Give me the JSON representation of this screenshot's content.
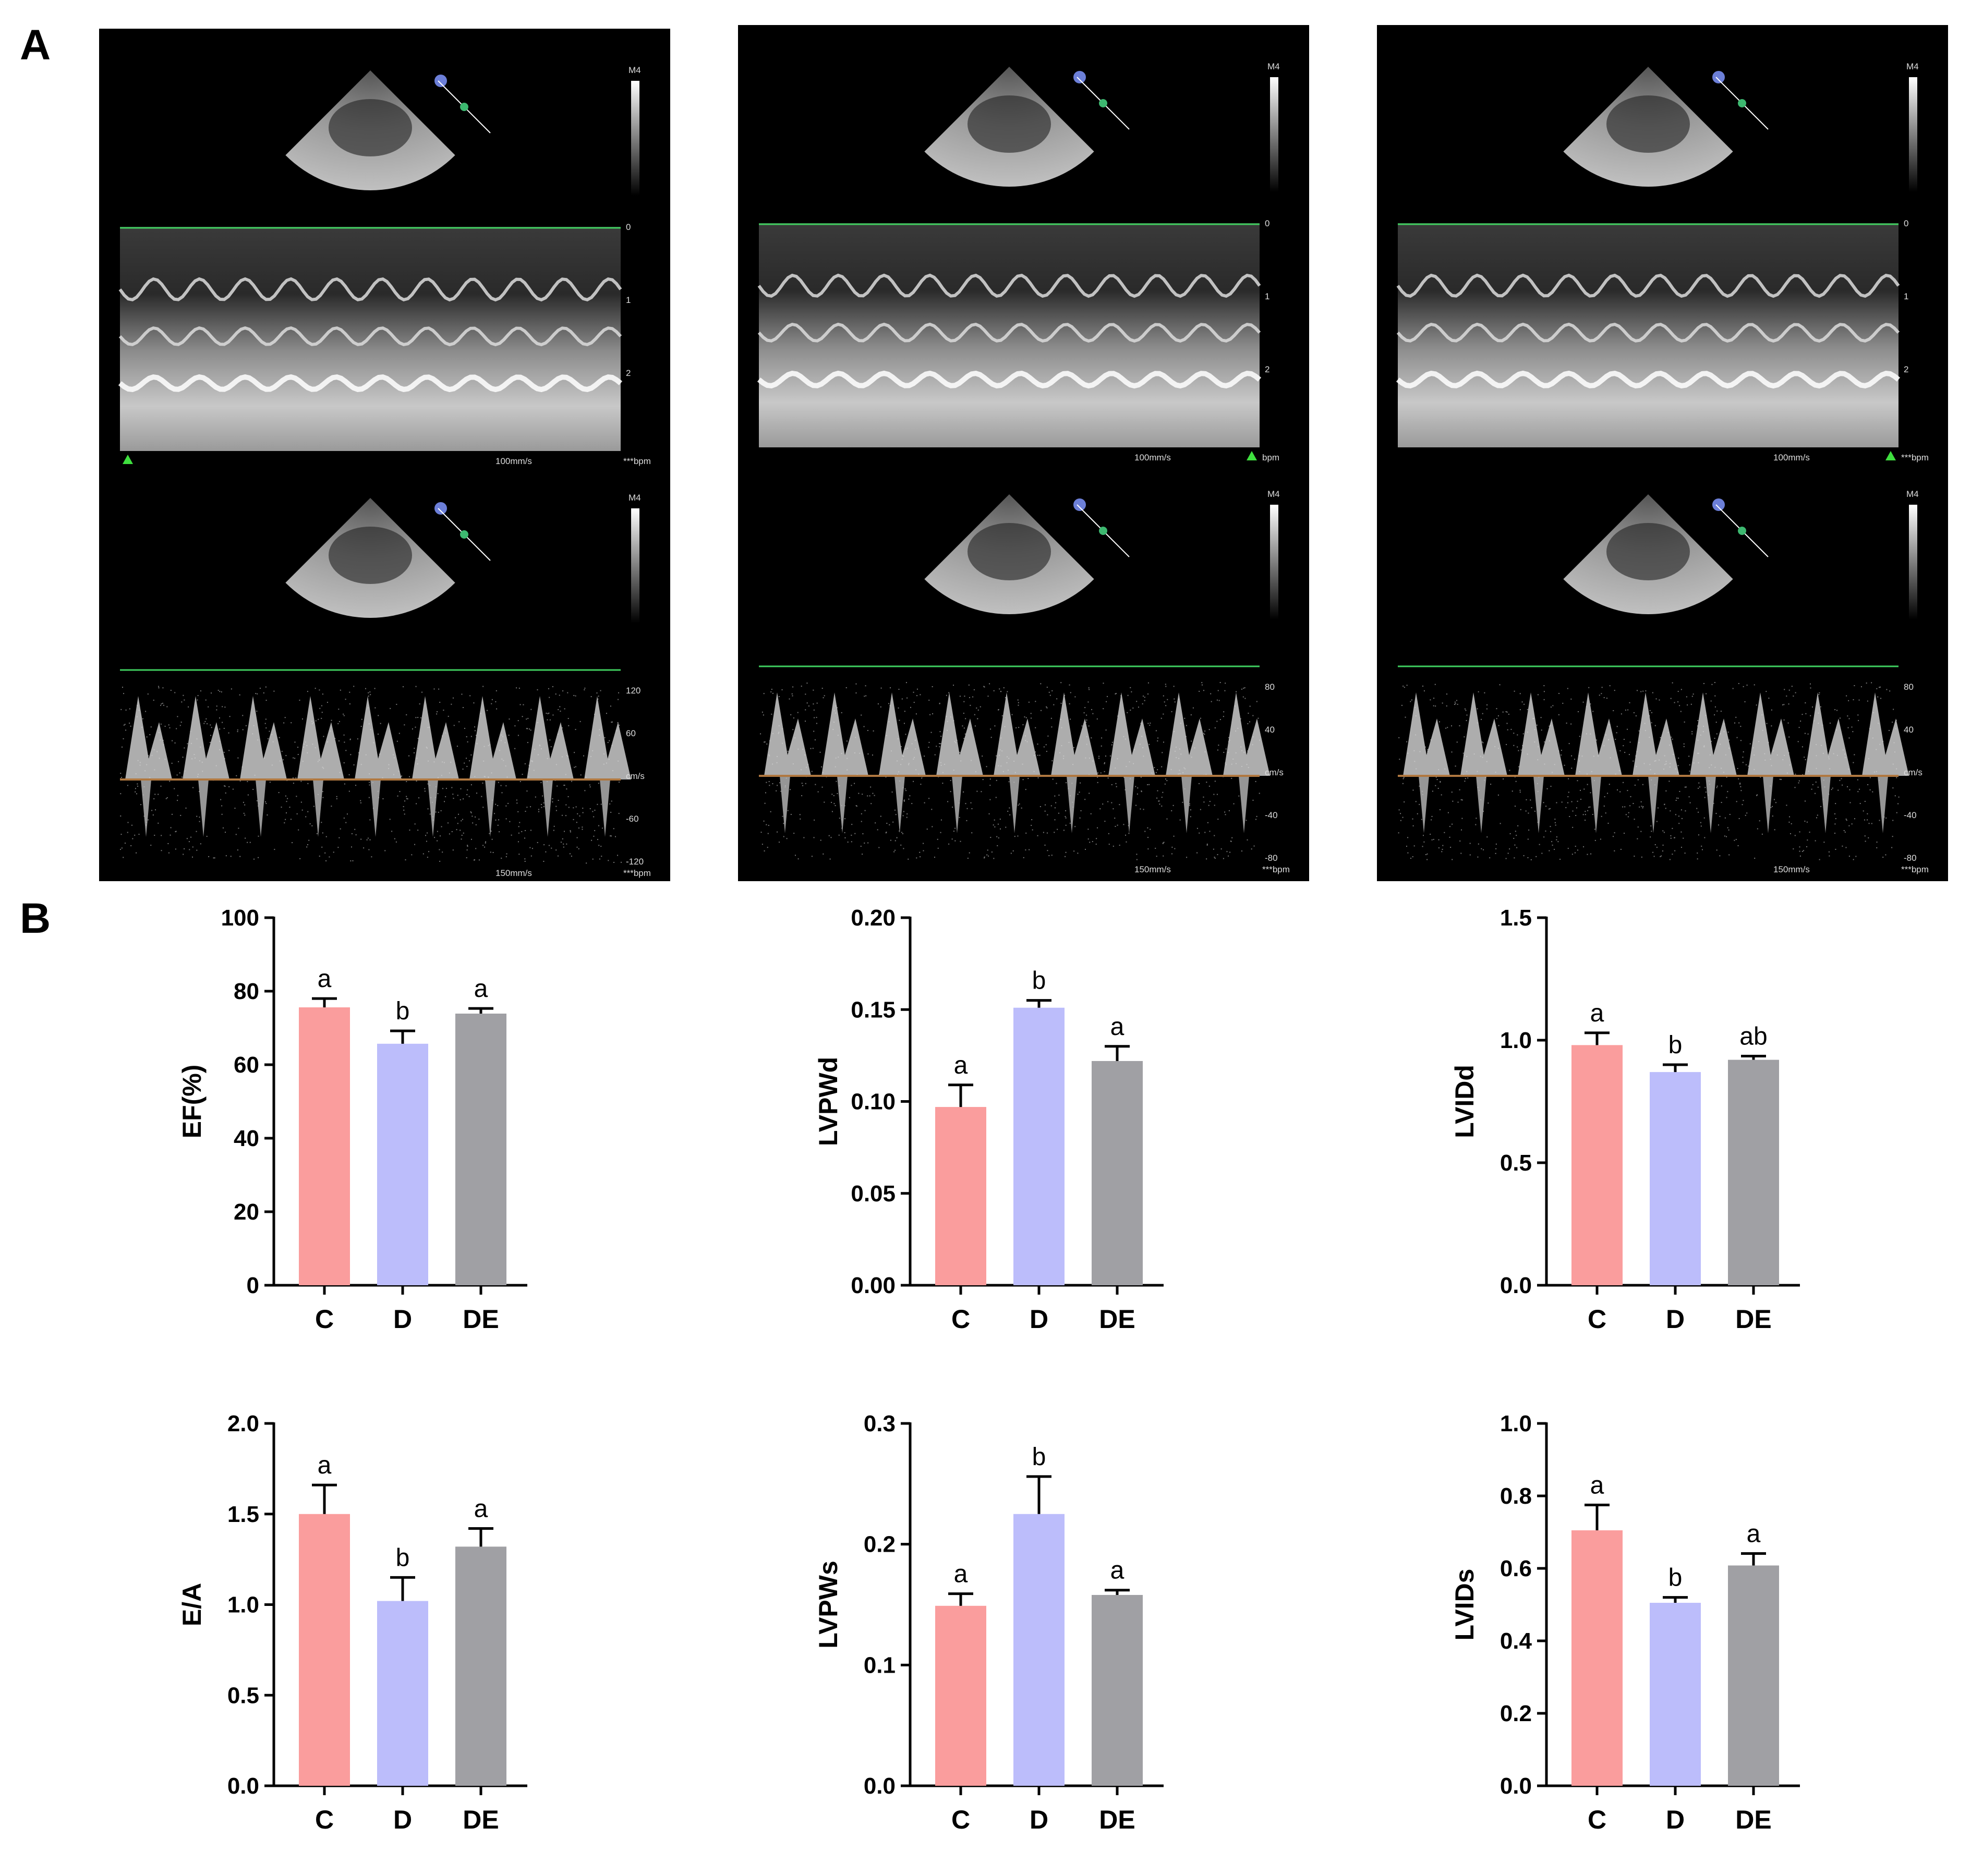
{
  "panels": {
    "a_label": "A",
    "b_label": "B"
  },
  "echo_panels": [
    {
      "mmode": {
        "depth_ticks": [
          "0",
          "1",
          "2"
        ],
        "speed": "100mm/s",
        "hr": "***bpm",
        "marker": "left"
      },
      "doppler": {
        "vel_ticks": [
          "120",
          "60",
          "cm/s",
          "-60",
          "-120"
        ],
        "speed": "150mm/s",
        "hr": "***bpm"
      },
      "probe_label": "M4"
    },
    {
      "mmode": {
        "depth_ticks": [
          "0",
          "1",
          "2"
        ],
        "speed": "100mm/s",
        "hr": "bpm",
        "marker": "right"
      },
      "doppler": {
        "vel_ticks": [
          "80",
          "40",
          "cm/s",
          "-40",
          "-80"
        ],
        "speed": "150mm/s",
        "hr": "***bpm"
      },
      "probe_label": "M4"
    },
    {
      "mmode": {
        "depth_ticks": [
          "0",
          "1",
          "2"
        ],
        "speed": "100mm/s",
        "hr": "***bpm",
        "marker": "right"
      },
      "doppler": {
        "vel_ticks": [
          "80",
          "40",
          "cm/s",
          "-40",
          "-80"
        ],
        "speed": "150mm/s",
        "hr": "***bpm"
      },
      "probe_label": "M4"
    }
  ],
  "colors": {
    "C": "#fa9d9d",
    "D": "#bcbdfb",
    "DE": "#a0a0a4"
  },
  "chart_data": [
    {
      "type": "bar",
      "ylabel": "EF(%)",
      "categories": [
        "C",
        "D",
        "DE"
      ],
      "values": [
        75.6,
        65.7,
        73.9
      ],
      "errors": [
        2.4,
        3.5,
        1.4
      ],
      "significance": [
        "a",
        "b",
        "a"
      ],
      "ylim": [
        0,
        100
      ],
      "yticks": [
        "0",
        "20",
        "40",
        "60",
        "80",
        "100"
      ]
    },
    {
      "type": "bar",
      "ylabel": "LVPWd",
      "categories": [
        "C",
        "D",
        "DE"
      ],
      "values": [
        0.097,
        0.151,
        0.122
      ],
      "errors": [
        0.012,
        0.004,
        0.008
      ],
      "significance": [
        "a",
        "b",
        "a"
      ],
      "ylim": [
        0,
        0.2
      ],
      "yticks": [
        "0.00",
        "0.05",
        "0.10",
        "0.15",
        "0.20"
      ]
    },
    {
      "type": "bar",
      "ylabel": "LVIDd",
      "categories": [
        "C",
        "D",
        "DE"
      ],
      "values": [
        0.98,
        0.87,
        0.92
      ],
      "errors": [
        0.05,
        0.03,
        0.015
      ],
      "significance": [
        "a",
        "b",
        "ab"
      ],
      "ylim": [
        0,
        1.5
      ],
      "yticks": [
        "0.0",
        "0.5",
        "1.0",
        "1.5"
      ]
    },
    {
      "type": "bar",
      "ylabel": "E/A",
      "categories": [
        "C",
        "D",
        "DE"
      ],
      "values": [
        1.5,
        1.02,
        1.32
      ],
      "errors": [
        0.16,
        0.13,
        0.1
      ],
      "significance": [
        "a",
        "b",
        "a"
      ],
      "ylim": [
        0,
        2.0
      ],
      "yticks": [
        "0.0",
        "0.5",
        "1.0",
        "1.5",
        "2.0"
      ]
    },
    {
      "type": "bar",
      "ylabel": "LVPWs",
      "categories": [
        "C",
        "D",
        "DE"
      ],
      "values": [
        0.149,
        0.225,
        0.158
      ],
      "errors": [
        0.01,
        0.031,
        0.004
      ],
      "significance": [
        "a",
        "b",
        "a"
      ],
      "ylim": [
        0,
        0.3
      ],
      "yticks": [
        "0.0",
        "0.1",
        "0.2",
        "0.3"
      ]
    },
    {
      "type": "bar",
      "ylabel": "LVIDs",
      "categories": [
        "C",
        "D",
        "DE"
      ],
      "values": [
        0.705,
        0.505,
        0.608
      ],
      "errors": [
        0.07,
        0.015,
        0.033
      ],
      "significance": [
        "a",
        "b",
        "a"
      ],
      "ylim": [
        0,
        1.0
      ],
      "yticks": [
        "0.0",
        "0.2",
        "0.4",
        "0.6",
        "0.8",
        "1.0"
      ]
    }
  ]
}
